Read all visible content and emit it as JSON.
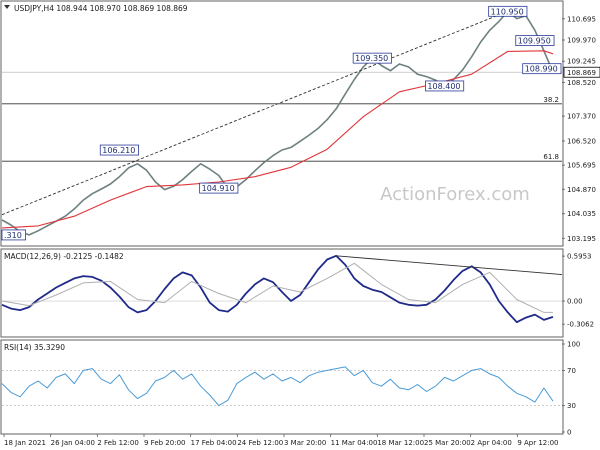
{
  "colors": {
    "price": "#6e8080",
    "ma": "#e0353a",
    "macd": "#1f2a8a",
    "macd_signal": "#b0b0b0",
    "rsi": "#4a9bd6",
    "trend": "#303030",
    "label_border": "#2a3a9a",
    "label_text": "#1f2d70",
    "fib": "#808080",
    "price_box_bg": "#ffffff"
  },
  "chart_data": [
    {
      "type": "line",
      "panel": "price",
      "header": "USDJPY,H4  108.944 108.970 108.869 108.869",
      "symbol": "USDJPY,H4",
      "ohlc": [
        "108.944",
        "108.970",
        "108.869",
        "108.869"
      ],
      "watermark": "ActionForex.com",
      "current_price": "108.869",
      "ylim": [
        103.0,
        111.2
      ],
      "y_ticks": [
        "110.695",
        "109.970",
        "109.245",
        "108.520",
        "107.370",
        "106.520",
        "105.695",
        "104.870",
        "104.035",
        "103.195"
      ],
      "x_range": [
        0,
        62
      ],
      "series": [
        {
          "role": "price",
          "x": [
            0,
            1,
            2,
            3,
            4,
            5,
            6,
            7,
            8,
            9,
            10,
            11,
            12,
            13,
            14,
            15,
            16,
            17,
            18,
            19,
            20,
            21,
            22,
            23,
            24,
            25,
            26,
            27,
            28,
            29,
            30,
            31,
            32,
            33,
            34,
            35,
            36,
            37,
            38,
            39,
            40,
            41,
            42,
            43,
            44,
            45,
            46,
            47,
            48,
            49,
            50,
            51,
            52,
            53,
            54,
            55,
            56,
            57,
            58,
            59,
            60,
            61
          ],
          "values": [
            103.82,
            103.65,
            103.42,
            103.31,
            103.45,
            103.62,
            103.78,
            103.95,
            104.2,
            104.5,
            104.72,
            104.88,
            105.05,
            105.3,
            105.6,
            105.74,
            105.52,
            105.12,
            104.86,
            104.97,
            105.2,
            105.48,
            105.74,
            105.56,
            105.34,
            104.91,
            104.95,
            105.2,
            105.5,
            105.78,
            106.02,
            106.21,
            106.3,
            106.51,
            106.72,
            106.95,
            107.25,
            107.62,
            108.12,
            108.62,
            109.05,
            109.35,
            109.1,
            108.92,
            109.15,
            109.05,
            108.8,
            108.72,
            108.6,
            108.4,
            108.62,
            108.95,
            109.4,
            109.9,
            110.3,
            110.6,
            110.95,
            110.7,
            110.8,
            110.3,
            109.6,
            108.87
          ]
        },
        {
          "role": "moving-average",
          "x": [
            0,
            4,
            8,
            12,
            16,
            20,
            24,
            28,
            32,
            36,
            40,
            44,
            48,
            52,
            56,
            60,
            61
          ],
          "values": [
            103.55,
            103.62,
            103.95,
            104.5,
            104.96,
            105.02,
            105.12,
            105.3,
            105.62,
            106.24,
            107.35,
            108.2,
            108.48,
            108.8,
            109.58,
            109.6,
            109.5
          ]
        },
        {
          "role": "trendline",
          "x": [
            0,
            56
          ],
          "values": [
            104.0,
            110.95
          ]
        }
      ],
      "fib_levels": [
        {
          "label": "38.2",
          "value": 107.79
        },
        {
          "label": "61.8",
          "value": 105.83
        }
      ],
      "annotations": [
        {
          "text": ".310",
          "x": 0,
          "y": 103.31
        },
        {
          "text": "106.210",
          "x": 13,
          "y": 106.21
        },
        {
          "text": "104.910",
          "x": 24,
          "y": 104.91
        },
        {
          "text": "109.350",
          "x": 41,
          "y": 109.35
        },
        {
          "text": "108.400",
          "x": 49,
          "y": 108.4
        },
        {
          "text": "110.950",
          "x": 56,
          "y": 110.95
        },
        {
          "text": "109.950",
          "x": 59,
          "y": 109.95
        },
        {
          "text": "108.990",
          "x": 60,
          "y": 108.99
        }
      ]
    },
    {
      "type": "line",
      "panel": "macd",
      "header": "MACD(12,26,9) -0.2125 -0.1482",
      "name": "MACD(12,26,9)",
      "readings": [
        "-0.2125",
        "-0.1482"
      ],
      "ylim": [
        -0.45,
        0.65
      ],
      "y_ticks": [
        "0.5953",
        "0.00",
        "-0.3062"
      ],
      "x_range": [
        0,
        62
      ],
      "series": [
        {
          "role": "macd",
          "x": [
            0,
            1,
            2,
            3,
            4,
            5,
            6,
            7,
            8,
            9,
            10,
            11,
            12,
            13,
            14,
            15,
            16,
            17,
            18,
            19,
            20,
            21,
            22,
            23,
            24,
            25,
            26,
            27,
            28,
            29,
            30,
            31,
            32,
            33,
            34,
            35,
            36,
            37,
            38,
            39,
            40,
            41,
            42,
            43,
            44,
            45,
            46,
            47,
            48,
            49,
            50,
            51,
            52,
            53,
            54,
            55,
            56,
            57,
            58,
            59,
            60,
            61
          ],
          "values": [
            -0.05,
            -0.1,
            -0.12,
            -0.08,
            0.02,
            0.1,
            0.18,
            0.24,
            0.3,
            0.33,
            0.32,
            0.27,
            0.18,
            0.06,
            -0.08,
            -0.15,
            -0.12,
            0.0,
            0.16,
            0.3,
            0.38,
            0.34,
            0.18,
            -0.02,
            -0.12,
            -0.14,
            -0.05,
            0.1,
            0.22,
            0.3,
            0.25,
            0.12,
            0.0,
            0.08,
            0.25,
            0.42,
            0.55,
            0.6,
            0.48,
            0.3,
            0.2,
            0.15,
            0.12,
            0.05,
            -0.02,
            -0.05,
            -0.06,
            -0.05,
            0.02,
            0.14,
            0.28,
            0.4,
            0.46,
            0.38,
            0.22,
            0.0,
            -0.15,
            -0.28,
            -0.22,
            -0.18,
            -0.25,
            -0.21
          ]
        },
        {
          "role": "signal",
          "x": [
            0,
            3,
            6,
            9,
            12,
            15,
            18,
            21,
            24,
            27,
            30,
            33,
            36,
            39,
            42,
            45,
            48,
            51,
            54,
            57,
            60,
            61
          ],
          "values": [
            0.0,
            -0.06,
            0.08,
            0.24,
            0.26,
            0.02,
            -0.02,
            0.26,
            0.1,
            -0.02,
            0.2,
            0.12,
            0.3,
            0.5,
            0.22,
            0.02,
            -0.02,
            0.22,
            0.38,
            0.02,
            -0.15,
            -0.15
          ]
        },
        {
          "role": "trendline",
          "x": [
            37,
            62
          ],
          "values": [
            0.6,
            0.35
          ]
        }
      ]
    },
    {
      "type": "line",
      "panel": "rsi",
      "header": "RSI(14) 35.3290",
      "name": "RSI(14)",
      "readings": [
        "35.3290"
      ],
      "ylim": [
        0,
        100
      ],
      "y_ticks": [
        "100",
        "70",
        "30",
        "0"
      ],
      "x_range": [
        0,
        62
      ],
      "series": [
        {
          "role": "rsi",
          "x": [
            0,
            1,
            2,
            3,
            4,
            5,
            6,
            7,
            8,
            9,
            10,
            11,
            12,
            13,
            14,
            15,
            16,
            17,
            18,
            19,
            20,
            21,
            22,
            23,
            24,
            25,
            26,
            27,
            28,
            29,
            30,
            31,
            32,
            33,
            34,
            35,
            36,
            37,
            38,
            39,
            40,
            41,
            42,
            43,
            44,
            45,
            46,
            47,
            48,
            49,
            50,
            51,
            52,
            53,
            54,
            55,
            56,
            57,
            58,
            59,
            60,
            61
          ],
          "values": [
            55,
            45,
            40,
            52,
            58,
            50,
            62,
            66,
            55,
            70,
            72,
            60,
            55,
            65,
            48,
            38,
            44,
            58,
            62,
            70,
            60,
            66,
            52,
            42,
            30,
            36,
            55,
            62,
            68,
            60,
            66,
            58,
            62,
            56,
            64,
            68,
            70,
            72,
            74,
            64,
            70,
            56,
            52,
            60,
            50,
            48,
            54,
            46,
            52,
            62,
            58,
            64,
            70,
            72,
            66,
            62,
            52,
            44,
            40,
            34,
            50,
            35
          ]
        }
      ],
      "x_ticks": [
        "18 Jan 2021",
        "26 Jan 04:00",
        "2 Feb 12:00",
        "9 Feb 20:00",
        "17 Feb 04:00",
        "24 Feb 12:00",
        "3 Mar 20:00",
        "11 Mar 04:00",
        "18 Mar 12:00",
        "25 Mar 20:00",
        "2 Apr 04:00",
        "9 Apr 12:00"
      ]
    }
  ]
}
